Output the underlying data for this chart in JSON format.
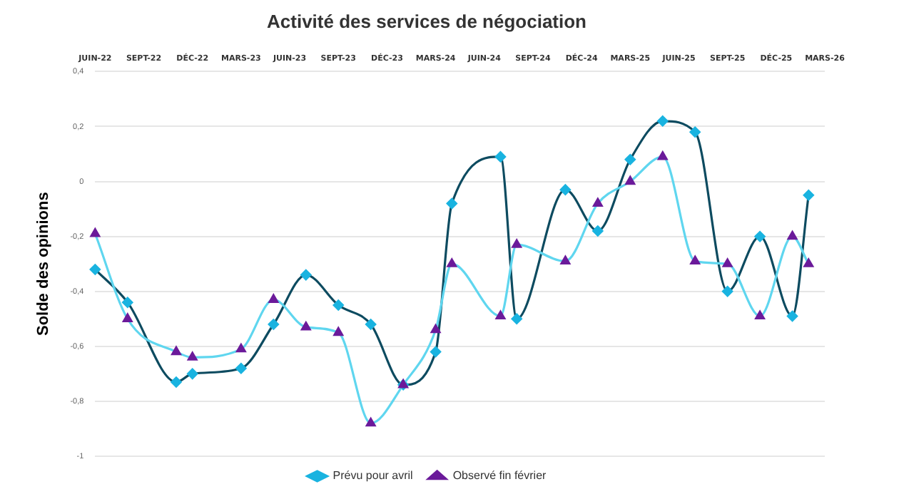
{
  "chart_data": {
    "type": "line",
    "title": "Activité des services de négociation",
    "ylabel": "Solde des opinions",
    "categories": [
      "JUIN-22",
      null,
      null,
      "SEPT-22",
      null,
      null,
      "DÉC-22",
      null,
      null,
      "MARS-23",
      null,
      null,
      "JUIN-23",
      null,
      null,
      "SEPT-23",
      null,
      null,
      "DÉC-23",
      null,
      null,
      "MARS-24",
      null,
      null,
      "JUIN-24",
      null,
      null,
      "SEPT-24",
      null,
      null,
      "DÉC-24",
      null,
      null,
      "MARS-25",
      null,
      null,
      "JUIN-25",
      null,
      null,
      "SEPT-25",
      null,
      null,
      "DÉC-25",
      null,
      null,
      "MARS-26"
    ],
    "series": [
      {
        "name": "Prévu pour avril",
        "color": "#0d4b60",
        "marker": "diamond",
        "values": [
          -0.32,
          null,
          -0.44,
          null,
          null,
          -0.73,
          -0.7,
          null,
          null,
          -0.68,
          null,
          -0.52,
          null,
          -0.34,
          null,
          -0.45,
          null,
          -0.52,
          null,
          -0.74,
          null,
          -0.62,
          -0.08,
          null,
          null,
          0.09,
          -0.5,
          null,
          null,
          -0.03,
          null,
          -0.18,
          null,
          0.08,
          null,
          0.22,
          null,
          0.18,
          null,
          -0.4,
          null,
          -0.2,
          null,
          -0.49,
          -0.05,
          null
        ]
      },
      {
        "name": "Observé fin février",
        "color": "#5fd6ef",
        "marker": "triangle",
        "values": [
          -0.19,
          null,
          -0.5,
          null,
          null,
          -0.62,
          -0.64,
          null,
          null,
          -0.61,
          null,
          -0.43,
          null,
          -0.53,
          null,
          -0.55,
          null,
          -0.88,
          null,
          -0.74,
          null,
          -0.54,
          -0.3,
          null,
          null,
          -0.49,
          -0.23,
          null,
          null,
          -0.29,
          null,
          -0.08,
          null,
          0.0,
          null,
          0.09,
          null,
          -0.29,
          null,
          -0.3,
          null,
          -0.49,
          null,
          -0.2,
          -0.3,
          null
        ]
      }
    ],
    "ylim": [
      -1,
      0.4
    ],
    "yticks": [
      {
        "value": 0.4,
        "label": "0,4"
      },
      {
        "value": 0.2,
        "label": "0,2"
      },
      0,
      {
        "value": -0.2,
        "label": "-0,2"
      },
      {
        "value": -0.4,
        "label": "-0,4"
      },
      {
        "value": -0.6,
        "label": "-0,6"
      },
      {
        "value": -0.8,
        "label": "-0,8"
      },
      {
        "value": -1,
        "label": "-1"
      }
    ],
    "grid": "y",
    "legend": "bottom"
  }
}
